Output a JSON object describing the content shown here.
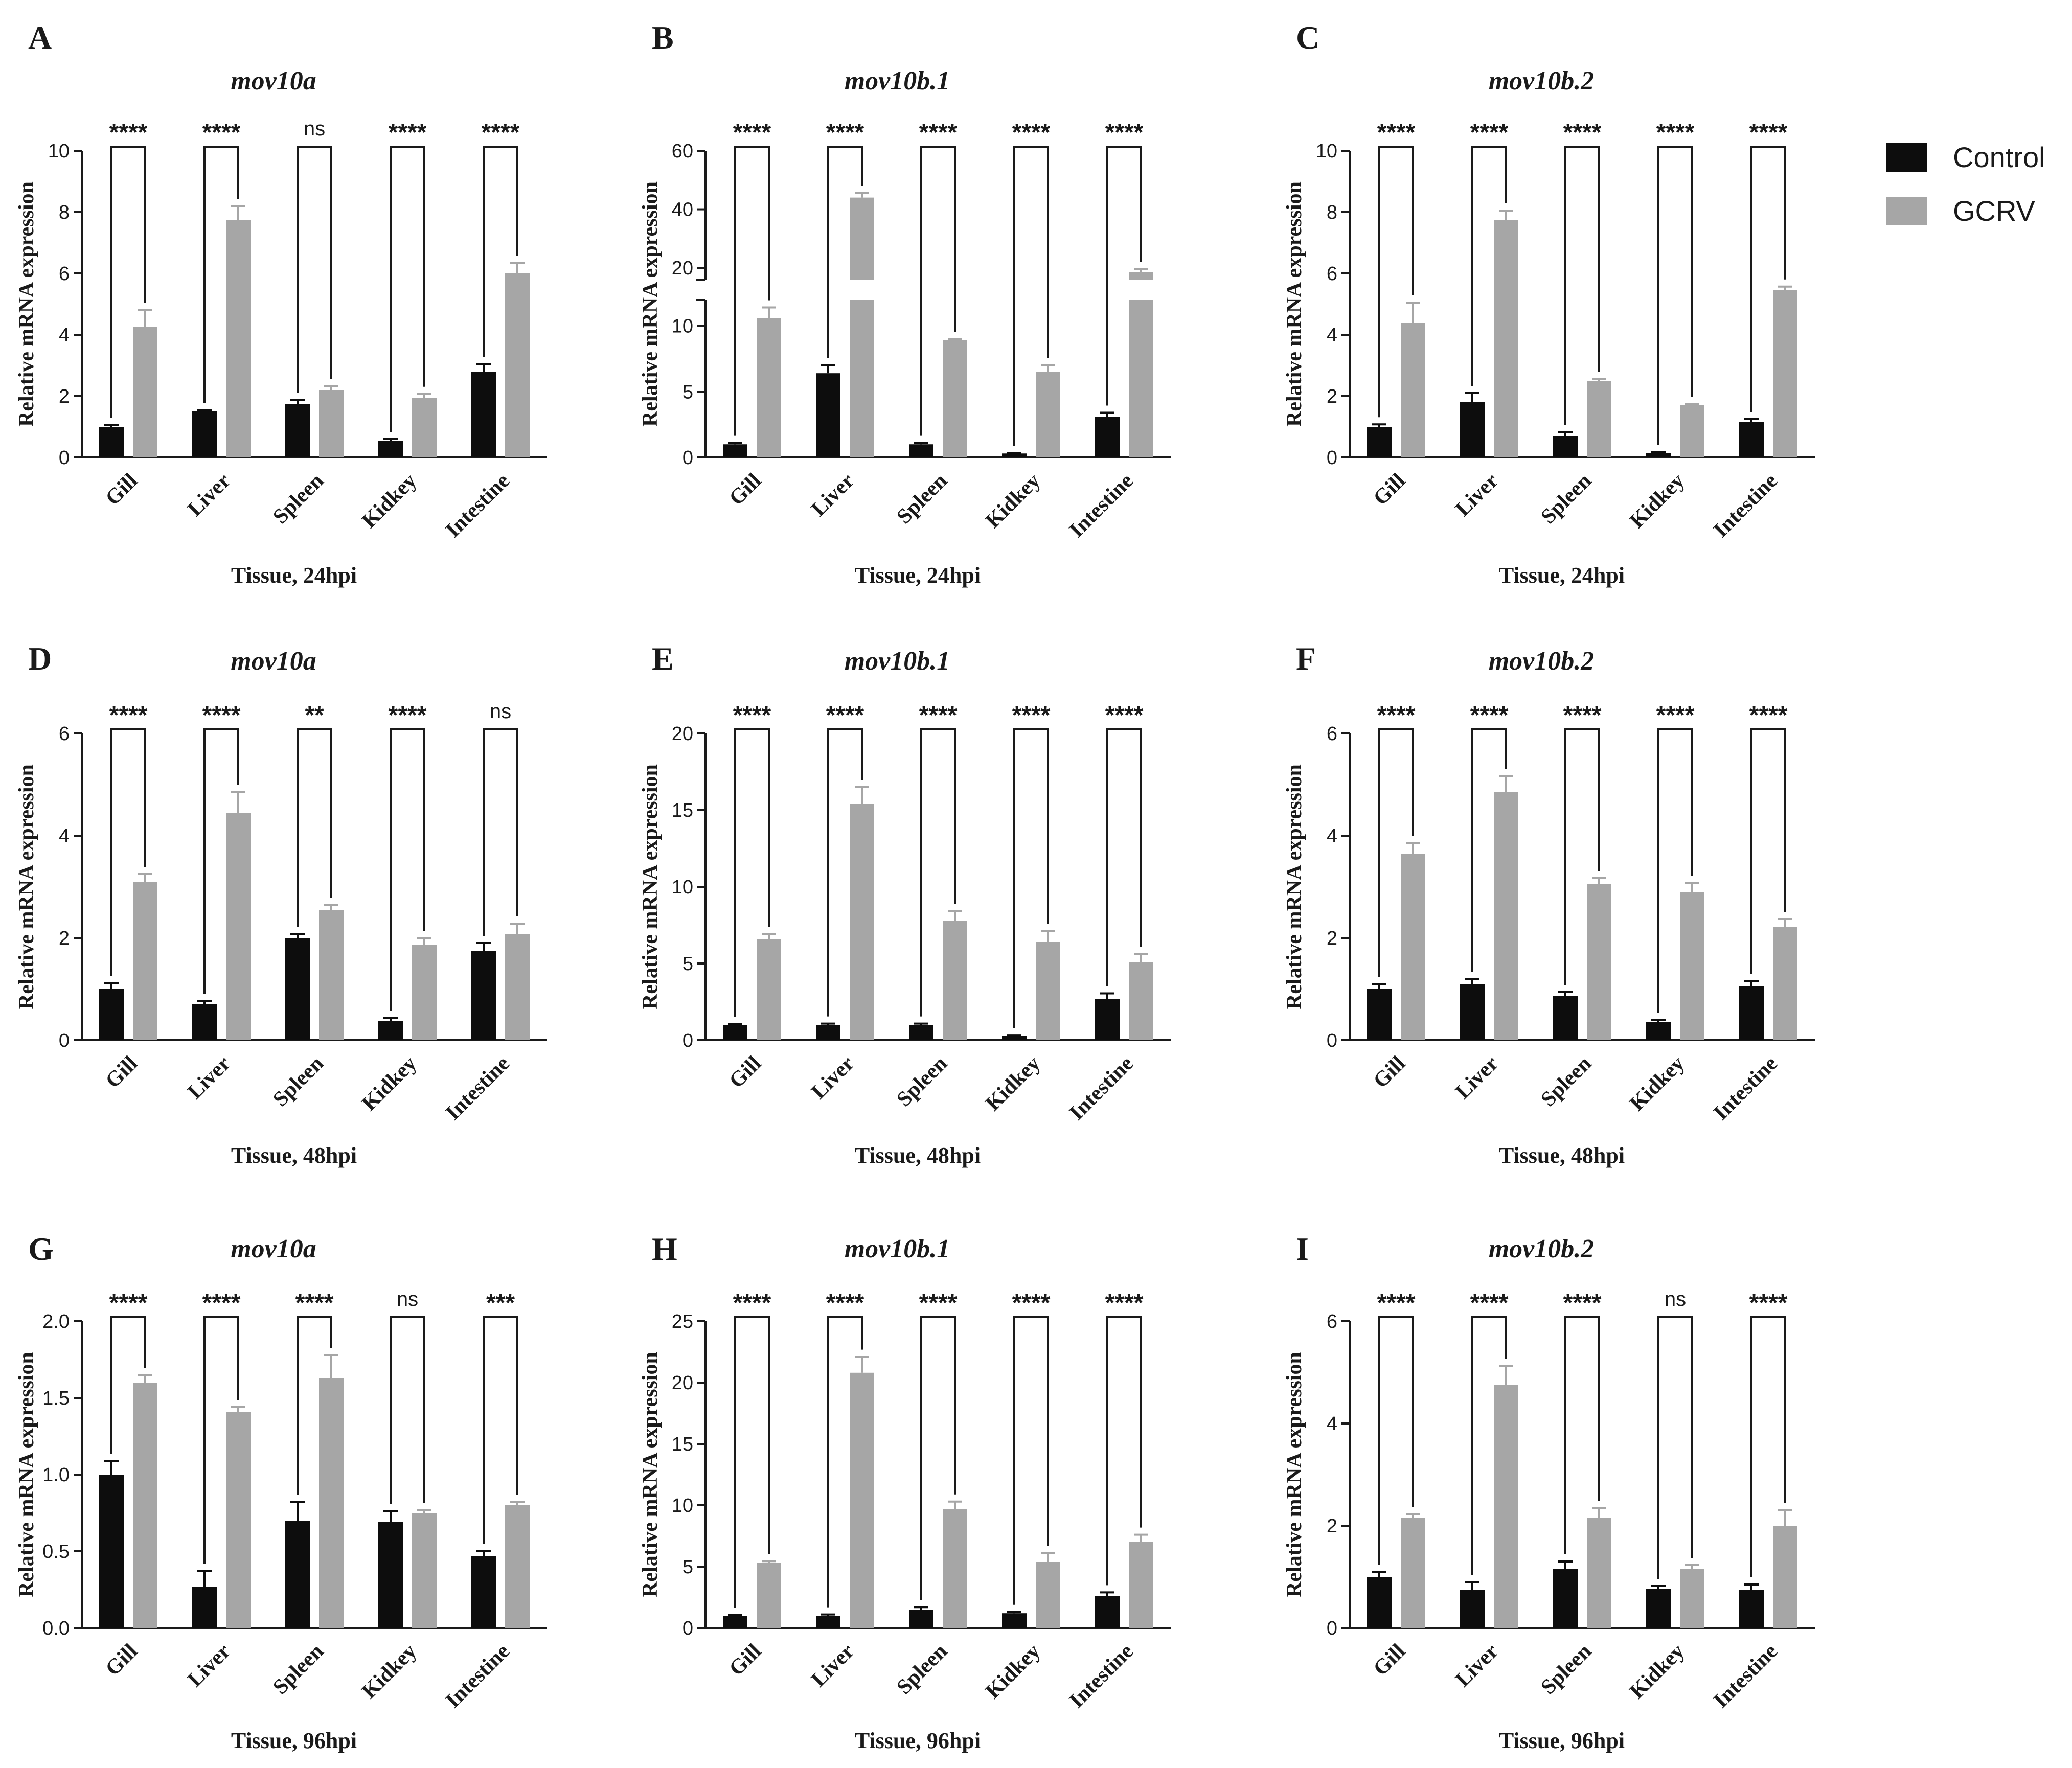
{
  "legend": {
    "placement": "top-right",
    "items": [
      {
        "name": "Control",
        "color": "#0d0d0d"
      },
      {
        "name": "GCRV",
        "color": "#a6a6a6"
      }
    ]
  },
  "colors": {
    "control": "#0d0d0d",
    "gcrv": "#a6a6a6",
    "axis": "#1a1a1a"
  },
  "chart_data": [
    {
      "panel": "A",
      "type": "bar",
      "title": "mov10a",
      "xlabel": "Tissue, 24hpi",
      "ylabel": "Relative mRNA expression",
      "categories": [
        "Gill",
        "Liver",
        "Spleen",
        "Kidkey",
        "Intestine"
      ],
      "ylim": [
        0,
        10
      ],
      "yticks": [
        0,
        2,
        4,
        6,
        8,
        10
      ],
      "ytick_labels": [
        "0",
        "2",
        "4",
        "6",
        "8",
        "10"
      ],
      "series": [
        {
          "name": "Control",
          "values": [
            1.0,
            1.5,
            1.75,
            0.55,
            2.8
          ],
          "errors": [
            0.05,
            0.05,
            0.12,
            0.05,
            0.25
          ]
        },
        {
          "name": "GCRV",
          "values": [
            4.25,
            7.75,
            2.2,
            1.95,
            6.0
          ],
          "errors": [
            0.55,
            0.45,
            0.12,
            0.12,
            0.35
          ]
        }
      ],
      "significance": [
        "****",
        "****",
        "ns",
        "****",
        "****"
      ]
    },
    {
      "panel": "B",
      "type": "bar",
      "title": "mov10b.1",
      "xlabel": "Tissue, 24hpi",
      "ylabel": "Relative mRNA expression",
      "categories": [
        "Gill",
        "Liver",
        "Spleen",
        "Kidkey",
        "Intestine"
      ],
      "ylim": [
        0,
        60
      ],
      "yticks": [
        0,
        5,
        10,
        20,
        40,
        60
      ],
      "ytick_labels": [
        "0",
        "5",
        "10",
        "20",
        "40",
        "60"
      ],
      "axis_break": [
        12,
        16
      ],
      "series": [
        {
          "name": "Control",
          "values": [
            1.0,
            6.4,
            1.0,
            0.3,
            3.1
          ],
          "errors": [
            0.1,
            0.6,
            0.1,
            0.05,
            0.3
          ]
        },
        {
          "name": "GCRV",
          "values": [
            10.6,
            44.0,
            8.9,
            6.5,
            18.5
          ],
          "errors": [
            0.8,
            1.5,
            0.1,
            0.5,
            1.0
          ]
        }
      ],
      "significance": [
        "****",
        "****",
        "****",
        "****",
        "****"
      ]
    },
    {
      "panel": "C",
      "type": "bar",
      "title": "mov10b.2",
      "xlabel": "Tissue, 24hpi",
      "ylabel": "Relative mRNA expression",
      "categories": [
        "Gill",
        "Liver",
        "Spleen",
        "Kidkey",
        "Intestine"
      ],
      "ylim": [
        0,
        10
      ],
      "yticks": [
        0,
        2,
        4,
        6,
        8,
        10
      ],
      "ytick_labels": [
        "0",
        "2",
        "4",
        "6",
        "8",
        "10"
      ],
      "series": [
        {
          "name": "Control",
          "values": [
            1.0,
            1.8,
            0.7,
            0.15,
            1.15
          ],
          "errors": [
            0.08,
            0.3,
            0.12,
            0.03,
            0.1
          ]
        },
        {
          "name": "GCRV",
          "values": [
            4.4,
            7.75,
            2.5,
            1.7,
            5.45
          ],
          "errors": [
            0.65,
            0.3,
            0.05,
            0.05,
            0.12
          ]
        }
      ],
      "significance": [
        "****",
        "****",
        "****",
        "****",
        "****"
      ]
    },
    {
      "panel": "D",
      "type": "bar",
      "title": "mov10a",
      "xlabel": "Tissue, 48hpi",
      "ylabel": "Relative mRNA expression",
      "categories": [
        "Gill",
        "Liver",
        "Spleen",
        "Kidkey",
        "Intestine"
      ],
      "ylim": [
        0,
        6
      ],
      "yticks": [
        0,
        2,
        4,
        6
      ],
      "ytick_labels": [
        "0",
        "2",
        "4",
        "6"
      ],
      "series": [
        {
          "name": "Control",
          "values": [
            1.0,
            0.7,
            2.0,
            0.38,
            1.75
          ],
          "errors": [
            0.12,
            0.07,
            0.08,
            0.06,
            0.15
          ]
        },
        {
          "name": "GCRV",
          "values": [
            3.1,
            4.45,
            2.55,
            1.87,
            2.08
          ],
          "errors": [
            0.15,
            0.4,
            0.1,
            0.12,
            0.2
          ]
        }
      ],
      "significance": [
        "****",
        "****",
        "**",
        "****",
        "ns"
      ]
    },
    {
      "panel": "E",
      "type": "bar",
      "title": "mov10b.1",
      "xlabel": "Tissue, 48hpi",
      "ylabel": "Relative mRNA expression",
      "categories": [
        "Gill",
        "Liver",
        "Spleen",
        "Kidkey",
        "Intestine"
      ],
      "ylim": [
        0,
        20
      ],
      "yticks": [
        0,
        5,
        10,
        15,
        20
      ],
      "ytick_labels": [
        "0",
        "5",
        "10",
        "15",
        "20"
      ],
      "series": [
        {
          "name": "Control",
          "values": [
            1.0,
            1.0,
            1.0,
            0.3,
            2.7
          ],
          "errors": [
            0.05,
            0.08,
            0.08,
            0.03,
            0.35
          ]
        },
        {
          "name": "GCRV",
          "values": [
            6.6,
            15.4,
            7.8,
            6.4,
            5.1
          ],
          "errors": [
            0.3,
            1.1,
            0.6,
            0.7,
            0.5
          ]
        }
      ],
      "significance": [
        "****",
        "****",
        "****",
        "****",
        "****"
      ]
    },
    {
      "panel": "F",
      "type": "bar",
      "title": "mov10b.2",
      "xlabel": "Tissue, 48hpi",
      "ylabel": "Relative mRNA expression",
      "categories": [
        "Gill",
        "Liver",
        "Spleen",
        "Kidkey",
        "Intestine"
      ],
      "ylim": [
        0,
        6
      ],
      "yticks": [
        0,
        2,
        4,
        6
      ],
      "ytick_labels": [
        "0",
        "2",
        "4",
        "6"
      ],
      "series": [
        {
          "name": "Control",
          "values": [
            1.0,
            1.1,
            0.87,
            0.35,
            1.05
          ],
          "errors": [
            0.1,
            0.1,
            0.07,
            0.05,
            0.1
          ]
        },
        {
          "name": "GCRV",
          "values": [
            3.65,
            4.85,
            3.05,
            2.9,
            2.22
          ],
          "errors": [
            0.2,
            0.32,
            0.12,
            0.18,
            0.15
          ]
        }
      ],
      "significance": [
        "****",
        "****",
        "****",
        "****",
        "****"
      ]
    },
    {
      "panel": "G",
      "type": "bar",
      "title": "mov10a",
      "xlabel": "Tissue, 96hpi",
      "ylabel": "Relative mRNA expression",
      "categories": [
        "Gill",
        "Liver",
        "Spleen",
        "Kidkey",
        "Intestine"
      ],
      "ylim": [
        0,
        2.0
      ],
      "yticks": [
        0,
        0.5,
        1.0,
        1.5,
        2.0
      ],
      "ytick_labels": [
        "0.0",
        "0.5",
        "1.0",
        "1.5",
        "2.0"
      ],
      "series": [
        {
          "name": "Control",
          "values": [
            1.0,
            0.27,
            0.7,
            0.69,
            0.47
          ],
          "errors": [
            0.09,
            0.1,
            0.12,
            0.07,
            0.03
          ]
        },
        {
          "name": "GCRV",
          "values": [
            1.6,
            1.41,
            1.63,
            0.75,
            0.8
          ],
          "errors": [
            0.05,
            0.03,
            0.15,
            0.02,
            0.02
          ]
        }
      ],
      "significance": [
        "****",
        "****",
        "****",
        "ns",
        "***"
      ]
    },
    {
      "panel": "H",
      "type": "bar",
      "title": "mov10b.1",
      "xlabel": "Tissue, 96hpi",
      "ylabel": "Relative mRNA expression",
      "categories": [
        "Gill",
        "Liver",
        "Spleen",
        "Kidkey",
        "Intestine"
      ],
      "ylim": [
        0,
        25
      ],
      "yticks": [
        0,
        5,
        10,
        15,
        20,
        25
      ],
      "ytick_labels": [
        "0",
        "5",
        "10",
        "15",
        "20",
        "25"
      ],
      "series": [
        {
          "name": "Control",
          "values": [
            1.0,
            1.0,
            1.5,
            1.2,
            2.6
          ],
          "errors": [
            0.05,
            0.1,
            0.2,
            0.1,
            0.3
          ]
        },
        {
          "name": "GCRV",
          "values": [
            5.3,
            20.8,
            9.7,
            5.4,
            7.0
          ],
          "errors": [
            0.15,
            1.3,
            0.6,
            0.7,
            0.6
          ]
        }
      ],
      "significance": [
        "****",
        "****",
        "****",
        "****",
        "****"
      ]
    },
    {
      "panel": "I",
      "type": "bar",
      "title": "mov10b.2",
      "xlabel": "Tissue, 96hpi",
      "ylabel": "Relative mRNA expression",
      "categories": [
        "Gill",
        "Liver",
        "Spleen",
        "Kidkey",
        "Intestine"
      ],
      "ylim": [
        0,
        6
      ],
      "yticks": [
        0,
        2,
        4,
        6
      ],
      "ytick_labels": [
        "0",
        "2",
        "4",
        "6"
      ],
      "series": [
        {
          "name": "Control",
          "values": [
            1.0,
            0.75,
            1.15,
            0.77,
            0.75
          ],
          "errors": [
            0.1,
            0.15,
            0.15,
            0.05,
            0.1
          ]
        },
        {
          "name": "GCRV",
          "values": [
            2.15,
            4.75,
            2.15,
            1.15,
            2.0
          ],
          "errors": [
            0.08,
            0.38,
            0.2,
            0.08,
            0.3
          ]
        }
      ],
      "significance": [
        "****",
        "****",
        "****",
        "ns",
        "****"
      ]
    }
  ]
}
